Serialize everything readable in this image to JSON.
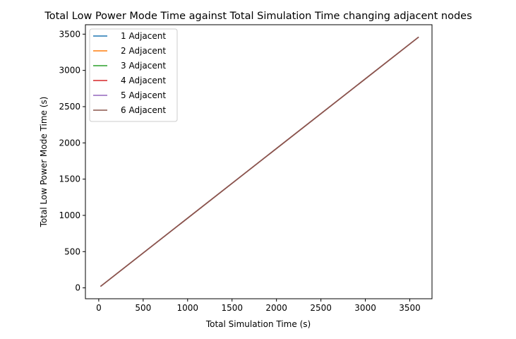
{
  "chart_data": {
    "type": "line",
    "title": "Total Low Power Mode Time against Total Simulation Time changing adjacent nodes",
    "xlabel": "Total Simulation Time (s)",
    "ylabel": "Total Low Power Mode Time (s)",
    "xlim": [
      -150,
      3750
    ],
    "ylim": [
      -150,
      3630
    ],
    "xticks": [
      0,
      500,
      1000,
      1500,
      2000,
      2500,
      3000,
      3500
    ],
    "yticks": [
      0,
      500,
      1000,
      1500,
      2000,
      2500,
      3000,
      3500
    ],
    "legend_position": "upper-left",
    "grid": false,
    "series": [
      {
        "name": "1 Adjacent",
        "color": "#1f77b4",
        "x": [
          20,
          3600
        ],
        "y": [
          20,
          3460
        ]
      },
      {
        "name": "2 Adjacent",
        "color": "#ff7f0e",
        "x": [
          20,
          3600
        ],
        "y": [
          20,
          3460
        ]
      },
      {
        "name": "3 Adjacent",
        "color": "#2ca02c",
        "x": [
          20,
          3600
        ],
        "y": [
          20,
          3460
        ]
      },
      {
        "name": "4 Adjacent",
        "color": "#d62728",
        "x": [
          20,
          3600
        ],
        "y": [
          20,
          3460
        ]
      },
      {
        "name": "5 Adjacent",
        "color": "#9467bd",
        "x": [
          20,
          3600
        ],
        "y": [
          20,
          3460
        ]
      },
      {
        "name": "6 Adjacent",
        "color": "#8c564b",
        "x": [
          20,
          3600
        ],
        "y": [
          20,
          3460
        ]
      }
    ]
  }
}
